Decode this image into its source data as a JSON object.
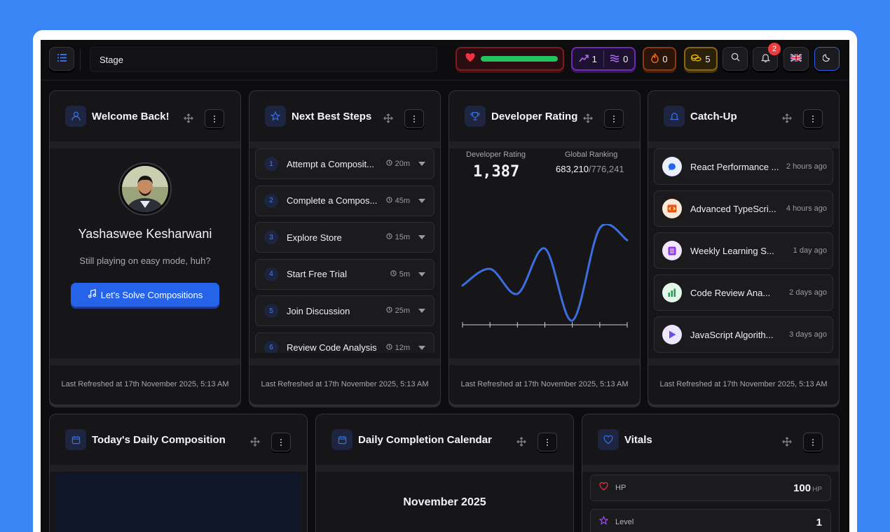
{
  "topbar": {
    "stage_label": "Stage",
    "hp_fraction": 1.0,
    "xp_count": "1",
    "waves_count": "0",
    "streak_count": "0",
    "coins_count": "5",
    "notification_count": "2"
  },
  "welcome": {
    "title": "Welcome Back!",
    "name": "Yashaswee Kesharwani",
    "tagline": "Still playing on easy mode, huh?",
    "cta": "Let's Solve Compositions",
    "footer": "Last Refreshed at 17th November 2025, 5:13 AM"
  },
  "steps": {
    "title": "Next Best Steps",
    "items": [
      {
        "num": "1",
        "label": "Attempt a Composit...",
        "time": "20m"
      },
      {
        "num": "2",
        "label": "Complete a Compos...",
        "time": "45m"
      },
      {
        "num": "3",
        "label": "Explore Store",
        "time": "15m"
      },
      {
        "num": "4",
        "label": "Start Free Trial",
        "time": "5m"
      },
      {
        "num": "5",
        "label": "Join Discussion",
        "time": "25m"
      },
      {
        "num": "6",
        "label": "Review Code Analysis",
        "time": "12m"
      }
    ],
    "footer": "Last Refreshed at 17th November 2025, 5:13 AM"
  },
  "rating": {
    "title": "Developer Rating",
    "rating_label": "Developer Rating",
    "rating_value": "1,387",
    "ranking_label": "Global Ranking",
    "ranking_value": "683,210",
    "ranking_total": "/776,241",
    "footer": "Last Refreshed at 17th November 2025, 5:13 AM"
  },
  "chart_data": {
    "type": "line",
    "title": "",
    "xlabel": "",
    "ylabel": "",
    "x": [
      0,
      1,
      2,
      3,
      4,
      5,
      6
    ],
    "series": [
      {
        "values": [
          0.38,
          0.56,
          0.29,
          0.78,
          0.0,
          1.0,
          0.87
        ]
      }
    ],
    "grid": false,
    "color": "#3b6fe0"
  },
  "catchup": {
    "title": "Catch-Up",
    "items": [
      {
        "title": "React Performance ...",
        "time": "2 hours ago",
        "icon": "chat-bubble-icon",
        "bg": "#e8f0ff",
        "fg": "#2563eb"
      },
      {
        "title": "Advanced TypeScri...",
        "time": "4 hours ago",
        "icon": "code-icon",
        "bg": "#fde9d8",
        "fg": "#ea580c"
      },
      {
        "title": "Weekly Learning S...",
        "time": "1 day ago",
        "icon": "document-icon",
        "bg": "#f2e6ff",
        "fg": "#9333ea"
      },
      {
        "title": "Code Review Ana...",
        "time": "2 days ago",
        "icon": "bar-chart-icon",
        "bg": "#e3f8ea",
        "fg": "#16a34a"
      },
      {
        "title": "JavaScript Algorith...",
        "time": "3 days ago",
        "icon": "play-icon",
        "bg": "#ece7ff",
        "fg": "#6d4ee6"
      }
    ],
    "footer": "Last Refreshed at 17th November 2025, 5:13 AM"
  },
  "daily": {
    "title": "Today's Daily Composition"
  },
  "calendar": {
    "title": "Daily Completion Calendar",
    "month": "November 2025"
  },
  "vitals": {
    "title": "Vitals",
    "hp_label": "HP",
    "hp_value": "100",
    "hp_unit": "HP",
    "level_label": "Level",
    "level_value": "1"
  }
}
